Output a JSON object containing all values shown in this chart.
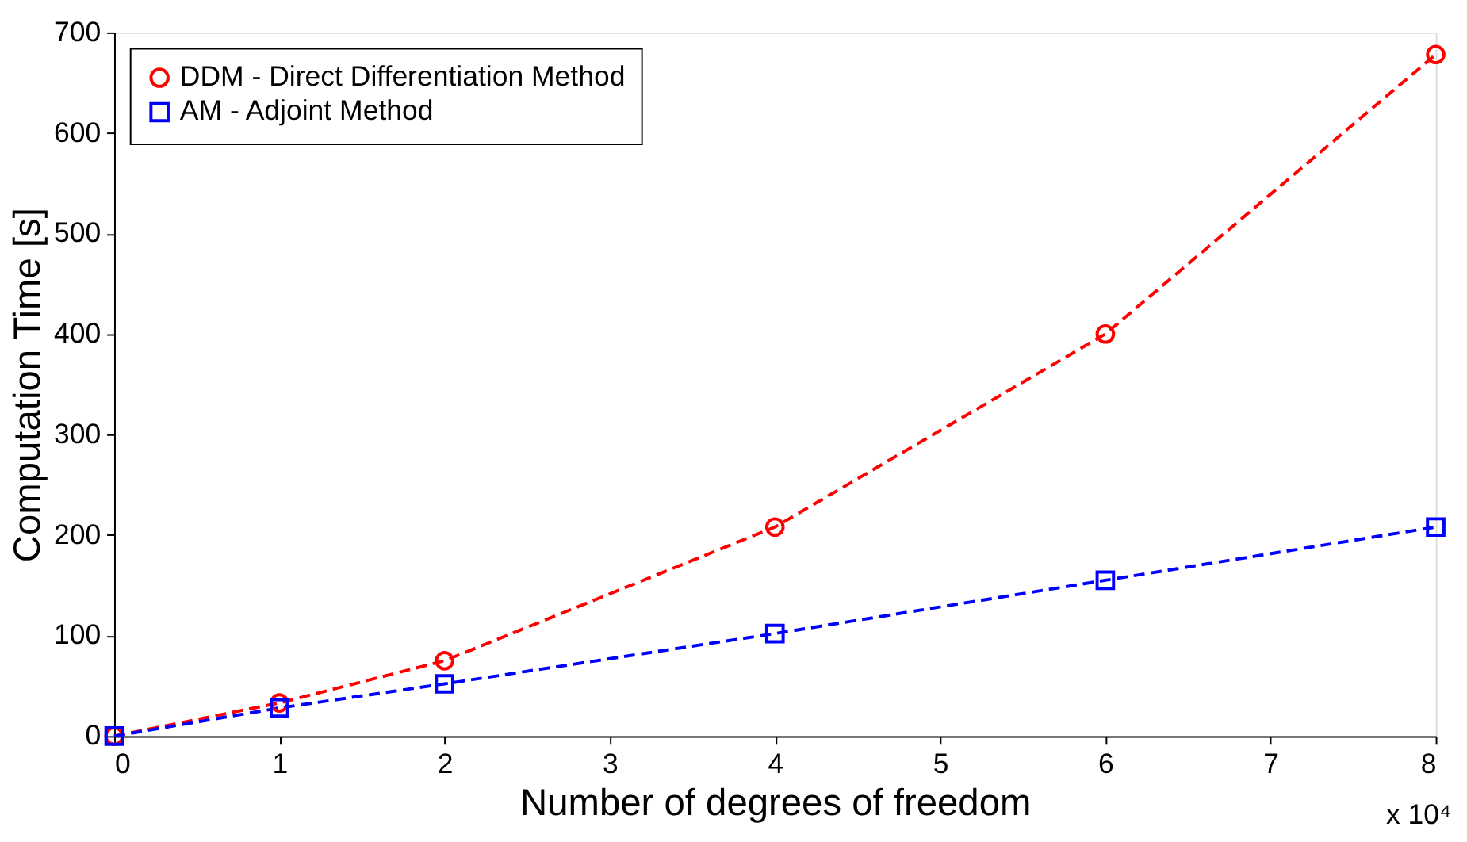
{
  "chart_data": {
    "type": "line",
    "xlabel": "Number of degrees of freedom",
    "ylabel": "Computation Time [s]",
    "x": [
      0,
      1,
      2,
      4,
      6,
      8
    ],
    "series": [
      {
        "name": "DDM - Direct Differentiation Method",
        "color": "#ff0000",
        "values": [
          0,
          33,
          75,
          208,
          400,
          678
        ],
        "marker": "circle"
      },
      {
        "name": "AM - Adjoint Method",
        "color": "#0000ff",
        "values": [
          0,
          28,
          52,
          102,
          155,
          208
        ],
        "marker": "square"
      }
    ],
    "xlim": [
      0,
      8
    ],
    "xticks": [
      0,
      1,
      2,
      3,
      4,
      5,
      6,
      7,
      8
    ],
    "ylim": [
      0,
      700
    ],
    "yticks": [
      0,
      100,
      200,
      300,
      400,
      500,
      600,
      700
    ],
    "grid": false,
    "legend": "top left",
    "line_style": "dashed",
    "annotations": [
      "x 10⁴"
    ]
  }
}
